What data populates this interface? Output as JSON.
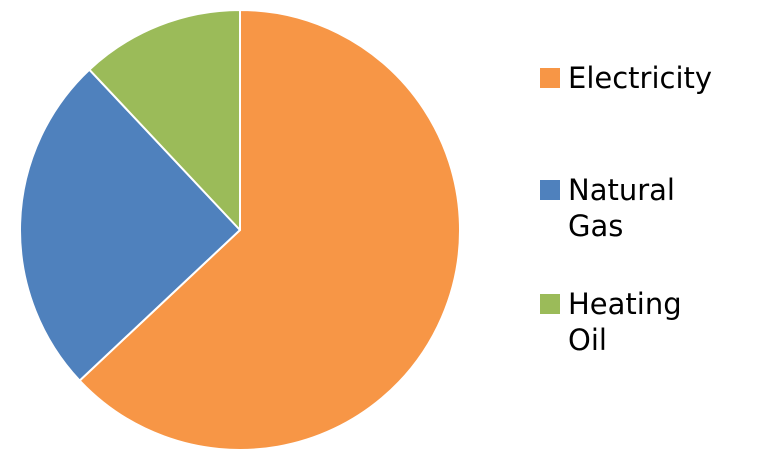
{
  "chart_data": {
    "type": "pie",
    "title": "",
    "categories": [
      "Electricity",
      "Natural Gas",
      "Heating Oil"
    ],
    "values": [
      63,
      25,
      12
    ],
    "colors": [
      "#F79646",
      "#4F81BD",
      "#9BBB59"
    ],
    "legend_position": "right",
    "start_angle": "12 o'clock, clockwise"
  },
  "legend": {
    "items": [
      {
        "label": "Electricity",
        "color": "#F79646"
      },
      {
        "label": "Natural Gas",
        "color": "#4F81BD"
      },
      {
        "label": "Heating Oil",
        "color": "#9BBB59"
      }
    ]
  }
}
